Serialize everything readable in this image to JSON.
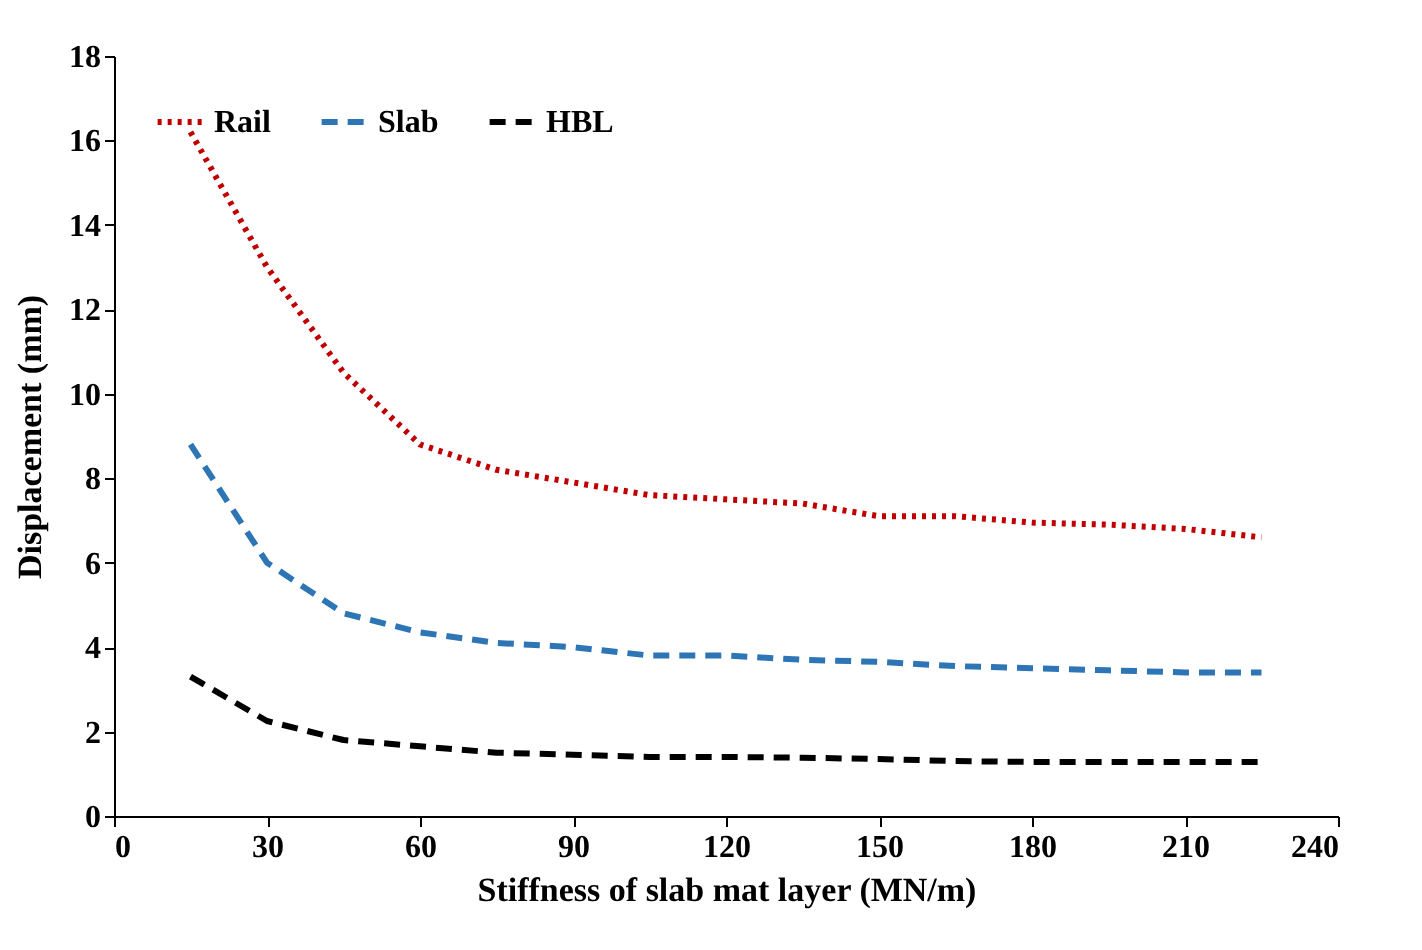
{
  "chart_data": {
    "type": "line",
    "xlabel": "Stiffness of slab mat layer (MN/m)",
    "ylabel": "Displacement (mm)",
    "x": [
      15,
      30,
      45,
      60,
      75,
      90,
      105,
      120,
      135,
      150,
      165,
      180,
      195,
      210,
      225
    ],
    "xlim": [
      0,
      240
    ],
    "xticks": [
      0,
      30,
      60,
      90,
      120,
      150,
      180,
      210,
      240
    ],
    "ylim": [
      0,
      18
    ],
    "yticks": [
      0,
      2,
      4,
      6,
      8,
      10,
      12,
      14,
      16,
      18
    ],
    "grid": false,
    "legend": "top left",
    "marker": "none",
    "series": [
      {
        "name": "Rail",
        "color": "#c00000",
        "line_style": "dotted",
        "values": [
          16.2,
          13.0,
          10.5,
          8.8,
          8.2,
          7.9,
          7.6,
          7.5,
          7.4,
          7.1,
          7.1,
          6.95,
          6.9,
          6.8,
          6.6
        ]
      },
      {
        "name": "Slab",
        "color": "#2e75b6",
        "line_style": "dashed",
        "values": [
          8.8,
          6.0,
          4.8,
          4.35,
          4.1,
          4.0,
          3.8,
          3.8,
          3.7,
          3.65,
          3.55,
          3.5,
          3.45,
          3.4,
          3.4
        ]
      },
      {
        "name": "HBL",
        "color": "#000000",
        "line_style": "dashed",
        "values": [
          3.3,
          2.25,
          1.8,
          1.65,
          1.5,
          1.45,
          1.4,
          1.4,
          1.38,
          1.35,
          1.3,
          1.28,
          1.28,
          1.28,
          1.28
        ]
      }
    ]
  }
}
